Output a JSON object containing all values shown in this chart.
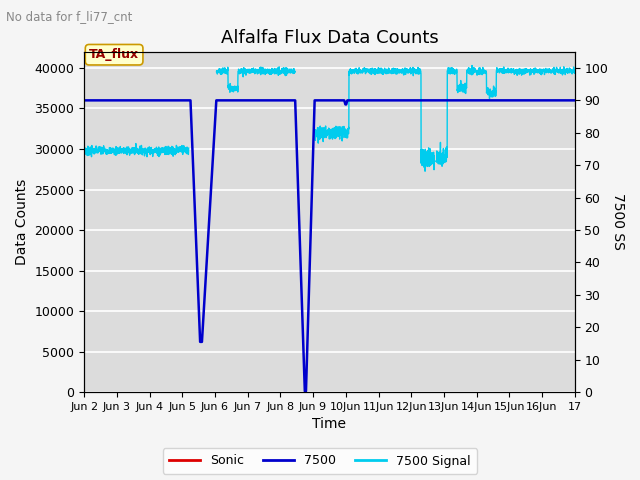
{
  "title": "Alfalfa Flux Data Counts",
  "subtitle": "No data for f_li77_cnt",
  "xlabel": "Time",
  "ylabel_left": "Data Counts",
  "ylabel_right": "7500 SS",
  "annotation": "TA_flux",
  "ylim_left": [
    0,
    42000
  ],
  "ylim_right": [
    0,
    105
  ],
  "background_color": "#dcdcdc",
  "fig_facecolor": "#f5f5f5",
  "grid_color": "#ffffff",
  "sonic_color": "#dd0000",
  "line7500_color": "#0000cc",
  "signal_color": "#00ccee",
  "title_fontsize": 13,
  "axis_fontsize": 10,
  "tick_fontsize": 9,
  "right_ticks": [
    0,
    10,
    20,
    30,
    40,
    50,
    60,
    70,
    80,
    90,
    100
  ],
  "left_ticks": [
    0,
    5000,
    10000,
    15000,
    20000,
    25000,
    30000,
    35000,
    40000
  ],
  "x_days": [
    2,
    3,
    4,
    5,
    6,
    7,
    8,
    9,
    10,
    11,
    12,
    13,
    14,
    15,
    16,
    17
  ],
  "figsize": [
    6.4,
    4.8
  ],
  "dpi": 100
}
